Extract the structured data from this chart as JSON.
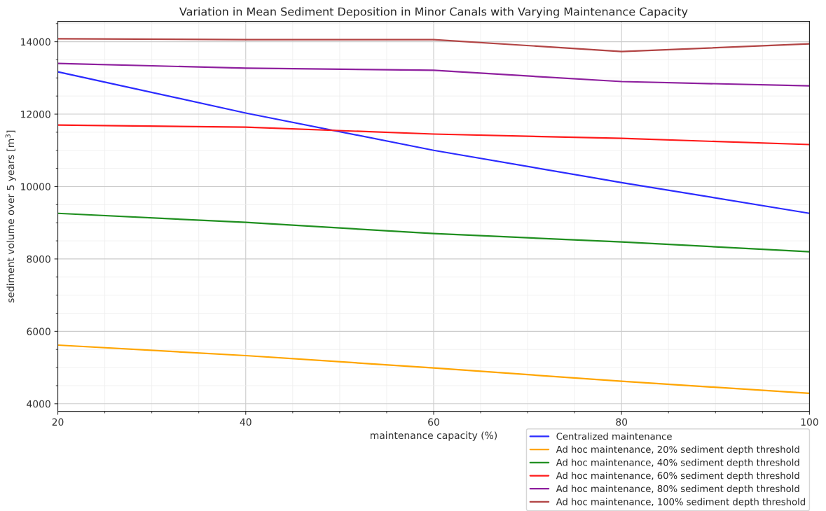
{
  "chart_data": {
    "type": "line",
    "title": "Variation in Mean Sediment Deposition in Minor Canals with Varying Maintenance Capacity",
    "xlabel": "maintenance capacity (%)",
    "ylabel": "sediment volume over 5 years [m$^{3}$]",
    "x": [
      20,
      40,
      60,
      80,
      100
    ],
    "series": [
      {
        "name": "Centralized maintenance",
        "color": "#2b2bff",
        "values": [
          13170,
          12030,
          11000,
          10110,
          9260
        ]
      },
      {
        "name": "Ad hoc maintenance, 20% sediment depth threshold",
        "color": "#ffa500",
        "values": [
          5620,
          5330,
          4990,
          4620,
          4290
        ]
      },
      {
        "name": "Ad hoc maintenance, 40% sediment depth threshold",
        "color": "#1f8f1f",
        "values": [
          9260,
          9010,
          8700,
          8470,
          8200
        ]
      },
      {
        "name": "Ad hoc maintenance, 60% sediment depth threshold",
        "color": "#ff1a1a",
        "values": [
          11700,
          11640,
          11450,
          11330,
          11160
        ]
      },
      {
        "name": "Ad hoc maintenance, 80% sediment depth threshold",
        "color": "#8e1f9e",
        "values": [
          13400,
          13270,
          13210,
          12900,
          12780
        ]
      },
      {
        "name": "Ad hoc maintenance, 100% sediment depth threshold",
        "color": "#b24444",
        "values": [
          14080,
          14060,
          14060,
          13730,
          13940
        ]
      }
    ],
    "xlim": [
      20,
      100
    ],
    "xticks": [
      20,
      40,
      60,
      80,
      100
    ],
    "ylim": [
      3790,
      14560
    ],
    "yticks": [
      4000,
      6000,
      8000,
      10000,
      12000,
      14000
    ],
    "grid": true,
    "legend": "bottom right",
    "marker": "none",
    "line_style": "solid"
  }
}
